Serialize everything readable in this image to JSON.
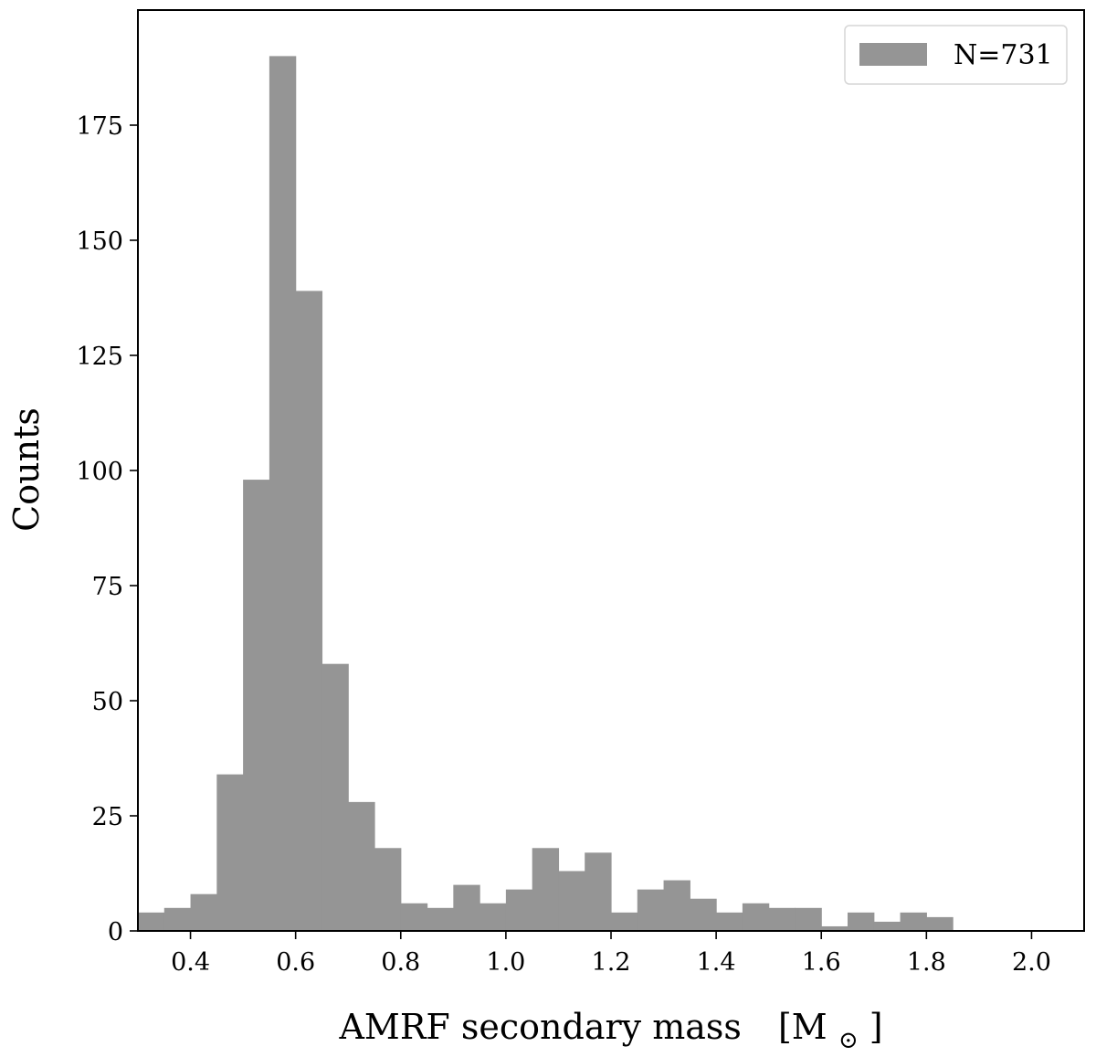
{
  "chart_data": {
    "type": "bar",
    "subtype": "histogram",
    "bin_width": 0.05,
    "bin_starts": [
      0.3,
      0.35,
      0.4,
      0.45,
      0.5,
      0.55,
      0.6,
      0.65,
      0.7,
      0.75,
      0.8,
      0.85,
      0.9,
      0.95,
      1.0,
      1.05,
      1.1,
      1.15,
      1.2,
      1.25,
      1.3,
      1.35,
      1.4,
      1.45,
      1.5,
      1.55,
      1.6,
      1.65,
      1.7,
      1.75,
      1.8
    ],
    "counts": [
      4,
      5,
      8,
      34,
      98,
      190,
      139,
      58,
      28,
      18,
      6,
      5,
      10,
      6,
      9,
      18,
      13,
      17,
      4,
      9,
      11,
      7,
      4,
      6,
      5,
      5,
      1,
      4,
      2,
      4,
      3
    ],
    "bar_color": "#959595",
    "xlim": [
      0.3,
      2.1
    ],
    "ylim": [
      0,
      200
    ],
    "xticks": [
      0.4,
      0.6,
      0.8,
      1.0,
      1.2,
      1.4,
      1.6,
      1.8,
      2.0
    ],
    "xtick_labels": [
      "0.4",
      "0.6",
      "0.8",
      "1.0",
      "1.2",
      "1.4",
      "1.6",
      "1.8",
      "2.0"
    ],
    "yticks": [
      0,
      25,
      50,
      75,
      100,
      125,
      150,
      175
    ],
    "ytick_labels": [
      "0",
      "25",
      "50",
      "75",
      "100",
      "125",
      "150",
      "175"
    ],
    "xlabel": "AMRF secondary mass",
    "xlabel_unit_open": "[M",
    "xlabel_unit_sub": "⊙",
    "xlabel_unit_close": "]",
    "ylabel": "Counts",
    "legend": {
      "entries": [
        "N=731"
      ],
      "placement": "top-right"
    },
    "grid": false
  }
}
